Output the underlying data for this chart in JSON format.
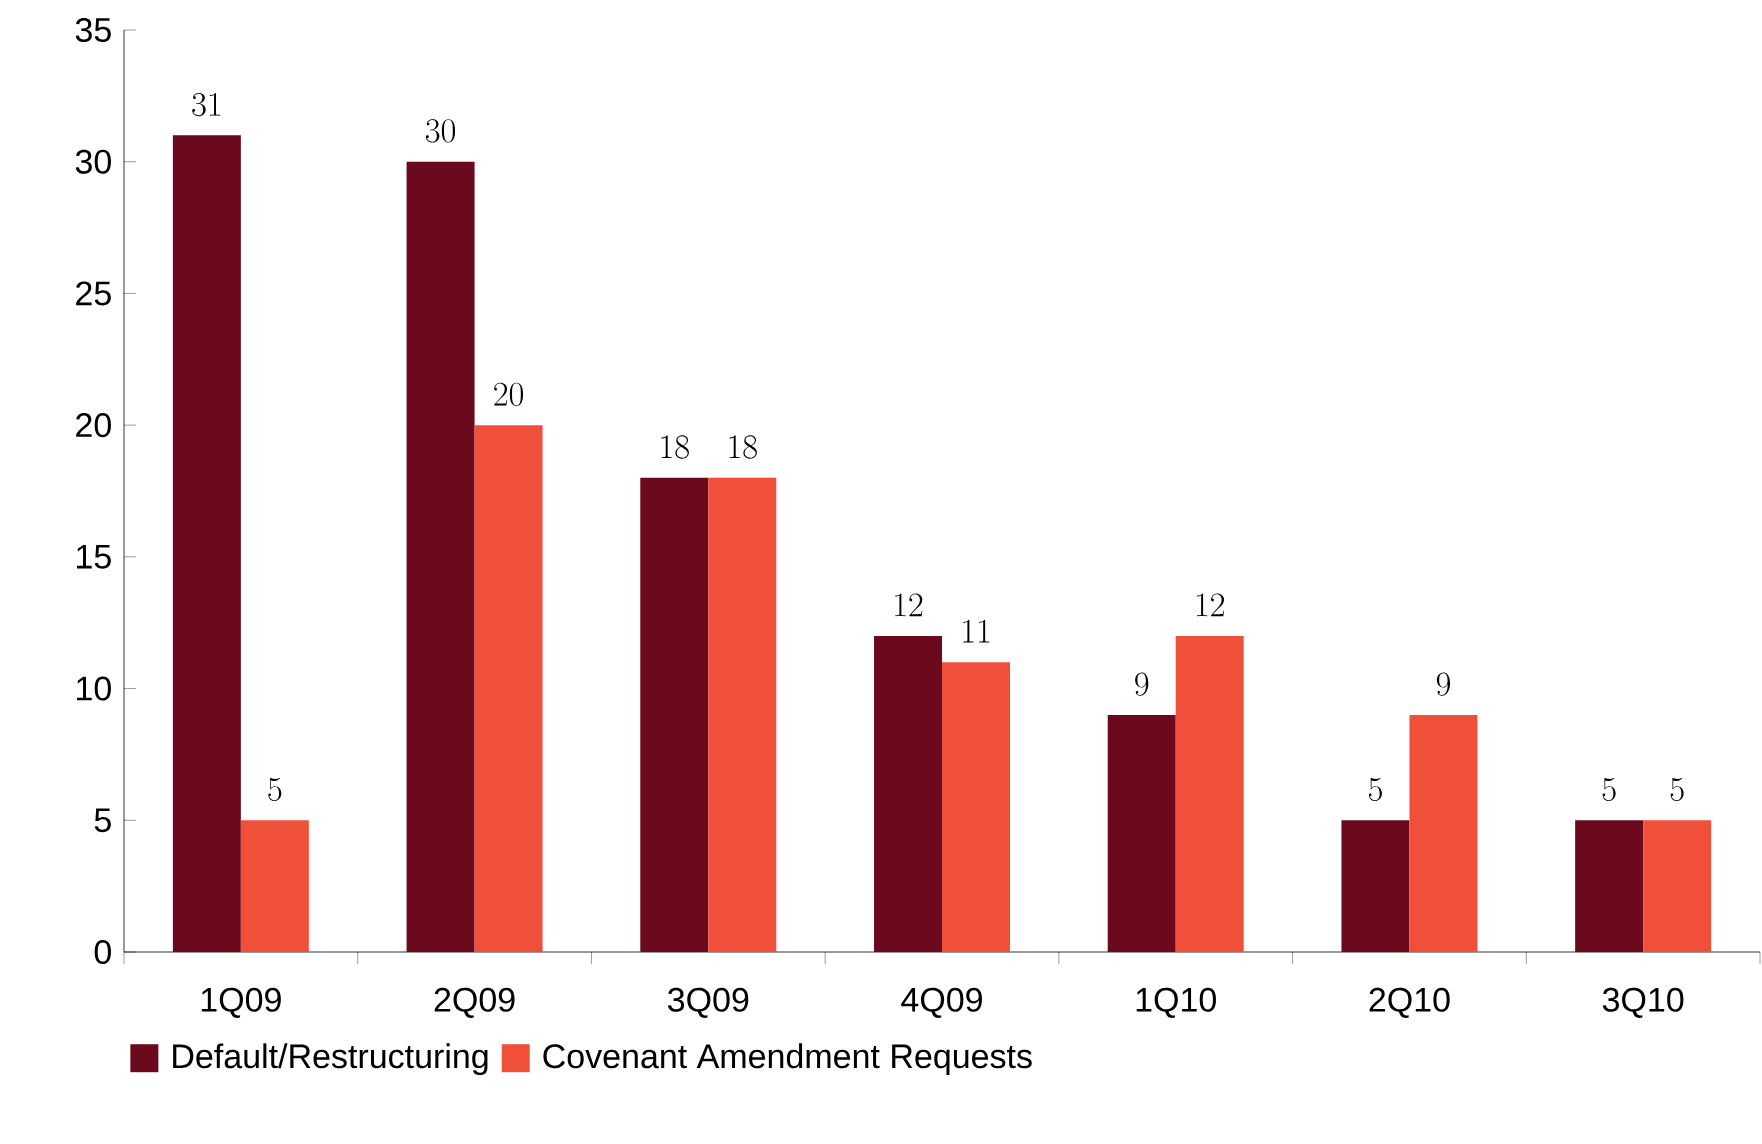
{
  "chart_data": {
    "type": "bar",
    "categories": [
      "1Q09",
      "2Q09",
      "3Q09",
      "4Q09",
      "1Q10",
      "2Q10",
      "3Q10"
    ],
    "series": [
      {
        "name": "Default/Restructuring",
        "color": "#6b0a1c",
        "values": [
          31,
          30,
          18,
          12,
          9,
          5,
          5
        ]
      },
      {
        "name": "Covenant Amendment Requests",
        "color": "#f0503a",
        "values": [
          5,
          20,
          18,
          11,
          12,
          9,
          5
        ]
      }
    ],
    "ylim": [
      0,
      35
    ],
    "yticks": [
      0,
      5,
      10,
      15,
      20,
      25,
      30,
      35
    ],
    "data_labels": true,
    "legend": "bottom"
  }
}
